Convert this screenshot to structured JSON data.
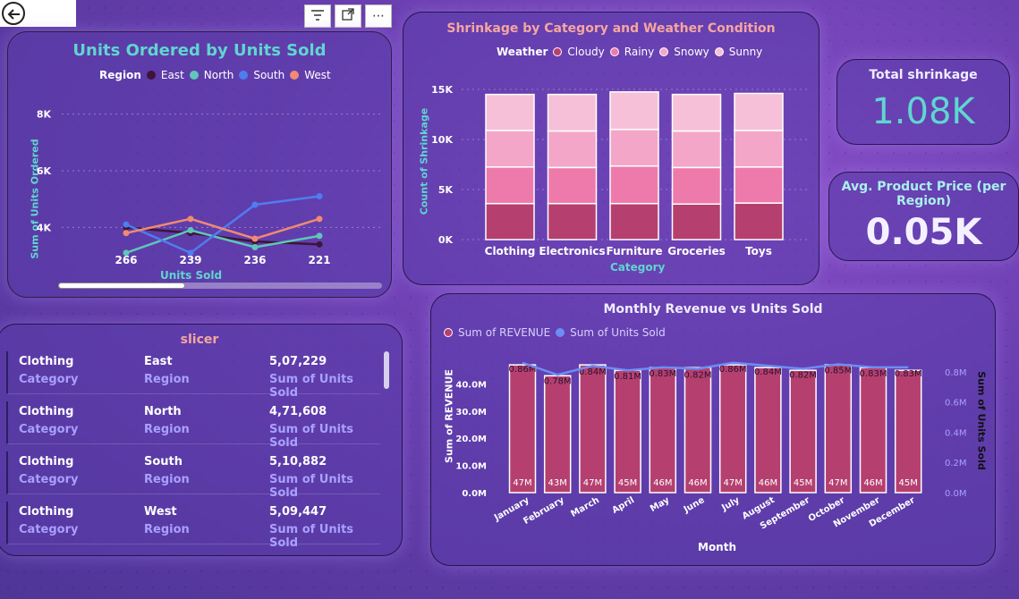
{
  "toolbar": {
    "back": "back-arrow-icon",
    "filter": "filter-icon",
    "focus": "focus-mode-icon",
    "more": "more-options-icon"
  },
  "colors": {
    "east": "#3d1538",
    "north": "#5fc7b9",
    "south": "#4f7df0",
    "west": "#f08a72",
    "cloudy": "#b5406f",
    "rainy": "#ee7aac",
    "snowy": "#f4a6c9",
    "sunny": "#f6c1d8",
    "revenue": "#b5406f",
    "units": "#6d8df5"
  },
  "line_panel": {
    "title": "Units Ordered by Units Sold",
    "legend_title": "Region",
    "xlabel": "Units Sold",
    "ylabel": "Sum of Units Ordered"
  },
  "bar_panel": {
    "title": "Shrinkage by Category and Weather Condition",
    "legend_title": "Weather",
    "xlabel": "Category",
    "ylabel": "Count of Shrinkage"
  },
  "combo_panel": {
    "title": "Monthly Revenue vs Units Sold",
    "xlabel": "Month",
    "ylabel_left": "Sum of REVENUE",
    "ylabel_right": "Sum of Units Sold"
  },
  "cards": {
    "shrinkage_title": "Total shrinkage",
    "shrinkage_value": "1.08K",
    "price_title": "Avg. Product Price (per Region)",
    "price_value": "0.05K"
  },
  "slicer": {
    "title": "slicer",
    "rows": [
      {
        "category": "Clothing",
        "category_key": "Category",
        "region": "East",
        "region_key": "Region",
        "units": "5,07,229",
        "units_key": "Sum of Units Sold"
      },
      {
        "category": "Clothing",
        "category_key": "Category",
        "region": "North",
        "region_key": "Region",
        "units": "4,71,608",
        "units_key": "Sum of Units Sold"
      },
      {
        "category": "Clothing",
        "category_key": "Category",
        "region": "South",
        "region_key": "Region",
        "units": "5,10,882",
        "units_key": "Sum of Units Sold"
      },
      {
        "category": "Clothing",
        "category_key": "Category",
        "region": "West",
        "region_key": "Region",
        "units": "5,09,447",
        "units_key": "Sum of Units Sold"
      }
    ]
  },
  "chart_data": [
    {
      "type": "line",
      "title": "Units Ordered by Units Sold",
      "xlabel": "Units Sold",
      "ylabel": "Sum of Units Ordered",
      "categories": [
        "266",
        "239",
        "236",
        "221"
      ],
      "y_ticks": [
        "4K",
        "6K",
        "8K"
      ],
      "ylim": [
        3000,
        9000
      ],
      "legend_title": "Region",
      "legend_position": "top",
      "series": [
        {
          "name": "East",
          "values": [
            4000,
            3800,
            3500,
            3400
          ]
        },
        {
          "name": "North",
          "values": [
            3100,
            3900,
            3300,
            3700
          ]
        },
        {
          "name": "South",
          "values": [
            4100,
            3100,
            4800,
            5100
          ]
        },
        {
          "name": "West",
          "values": [
            3800,
            4300,
            3600,
            4300
          ]
        }
      ]
    },
    {
      "type": "bar",
      "stacked": true,
      "title": "Shrinkage by Category and Weather Condition",
      "xlabel": "Category",
      "ylabel": "Count of Shrinkage",
      "categories": [
        "Clothing",
        "Electronics",
        "Furniture",
        "Groceries",
        "Toys"
      ],
      "y_ticks": [
        "0K",
        "5K",
        "10K",
        "15K"
      ],
      "ylim": [
        0,
        15000
      ],
      "legend_title": "Weather",
      "legend_position": "top",
      "series": [
        {
          "name": "Cloudy",
          "values": [
            3600,
            3600,
            3600,
            3550,
            3650
          ]
        },
        {
          "name": "Rainy",
          "values": [
            3650,
            3600,
            3750,
            3650,
            3600
          ]
        },
        {
          "name": "Snowy",
          "values": [
            3650,
            3650,
            3650,
            3650,
            3650
          ]
        },
        {
          "name": "Sunny",
          "values": [
            3600,
            3650,
            3750,
            3650,
            3700
          ]
        }
      ]
    },
    {
      "type": "bar",
      "combo_line": true,
      "title": "Monthly Revenue vs Units Sold",
      "xlabel": "Month",
      "ylabel": "Sum of REVENUE",
      "y2label": "Sum of Units Sold",
      "categories": [
        "January",
        "February",
        "March",
        "April",
        "May",
        "June",
        "July",
        "August",
        "September",
        "October",
        "November",
        "December"
      ],
      "y_ticks": [
        "0.0M",
        "10.0M",
        "20.0M",
        "30.0M",
        "40.0M"
      ],
      "y2_ticks": [
        "0.0M",
        "0.2M",
        "0.4M",
        "0.6M",
        "0.8M"
      ],
      "ylim": [
        0,
        50
      ],
      "y2lim": [
        0,
        0.9
      ],
      "legend_position": "top-left",
      "series": [
        {
          "name": "Sum of REVENUE",
          "values": [
            47,
            43,
            47,
            45,
            46,
            46,
            47,
            46,
            45,
            47,
            46,
            45
          ],
          "labels": [
            "47M",
            "43M",
            "47M",
            "45M",
            "46M",
            "46M",
            "47M",
            "46M",
            "45M",
            "47M",
            "46M",
            "45M"
          ]
        },
        {
          "name": "Sum of Units Sold",
          "values": [
            0.86,
            0.78,
            0.84,
            0.81,
            0.83,
            0.82,
            0.86,
            0.84,
            0.82,
            0.85,
            0.83,
            0.83
          ],
          "labels": [
            "0.86M",
            "0.78M",
            "0.84M",
            "0.81M",
            "0.83M",
            "0.82M",
            "0.86M",
            "0.84M",
            "0.82M",
            "0.85M",
            "0.83M",
            "0.83M"
          ]
        }
      ]
    }
  ]
}
